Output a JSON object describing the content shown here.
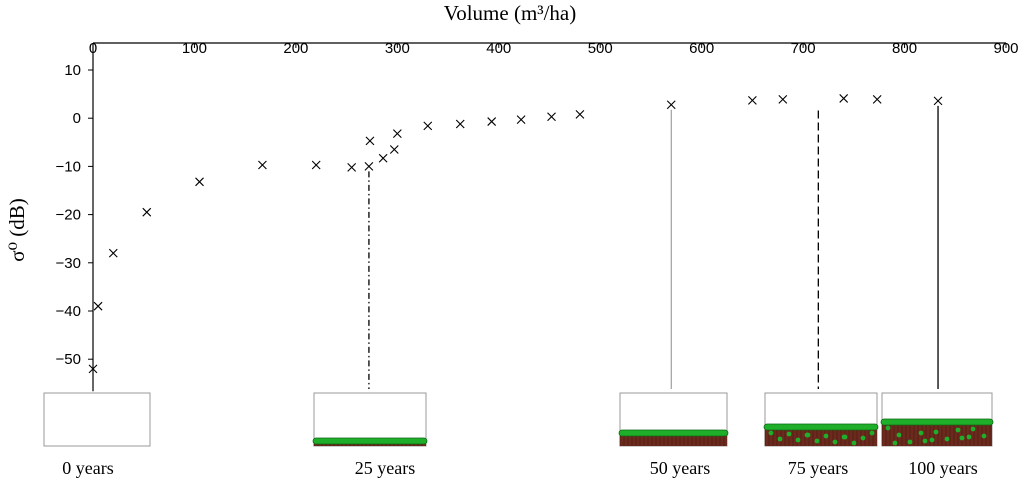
{
  "chart_data": {
    "type": "scatter",
    "title": "",
    "xlabel": "Volume (m³/ha)",
    "ylabel": "σ⁰ (dB)",
    "xlim": [
      0,
      900
    ],
    "ylim": [
      -55,
      10
    ],
    "x_ticks": [
      "0",
      "100",
      "200",
      "300",
      "400",
      "500",
      "600",
      "700",
      "800",
      "900"
    ],
    "y_ticks": [
      "10",
      "0",
      "−10",
      "−20",
      "−30",
      "−40",
      "−50"
    ],
    "x_axis_position": "top",
    "grid": false,
    "marker": "x",
    "points": [
      {
        "x": 0,
        "y": -52
      },
      {
        "x": 5,
        "y": -39
      },
      {
        "x": 20,
        "y": -28
      },
      {
        "x": 53,
        "y": -19.5
      },
      {
        "x": 105,
        "y": -13.2
      },
      {
        "x": 167,
        "y": -9.7
      },
      {
        "x": 220,
        "y": -9.7
      },
      {
        "x": 255,
        "y": -10.2
      },
      {
        "x": 272,
        "y": -10
      },
      {
        "x": 273,
        "y": -4.7
      },
      {
        "x": 286,
        "y": -8.3
      },
      {
        "x": 297,
        "y": -6.5
      },
      {
        "x": 300,
        "y": -3.2
      },
      {
        "x": 330,
        "y": -1.6
      },
      {
        "x": 362,
        "y": -1.2
      },
      {
        "x": 393,
        "y": -0.7
      },
      {
        "x": 422,
        "y": -0.3
      },
      {
        "x": 452,
        "y": 0.3
      },
      {
        "x": 480,
        "y": 0.8
      },
      {
        "x": 570,
        "y": 2.8
      },
      {
        "x": 650,
        "y": 3.7
      },
      {
        "x": 680,
        "y": 3.9
      },
      {
        "x": 740,
        "y": 4.1
      },
      {
        "x": 773,
        "y": 3.9
      },
      {
        "x": 833,
        "y": 3.6
      }
    ],
    "stand_markers": [
      {
        "label": "0 years",
        "volume": 0,
        "line_style": "none",
        "canopy_fill": 0
      },
      {
        "label": "25 years",
        "volume": 272,
        "line_style": "dash-dot",
        "canopy_fill": 0.1
      },
      {
        "label": "50 years",
        "volume": 570,
        "line_style": "solid-light",
        "canopy_fill": 0.25
      },
      {
        "label": "75 years",
        "volume": 715,
        "line_style": "dashed",
        "canopy_fill": 0.35
      },
      {
        "label": "100 years",
        "volume": 833,
        "line_style": "solid",
        "canopy_fill": 0.45
      }
    ],
    "colors": {
      "canopy": "#1fae2a",
      "trunk": "#6b2a1e",
      "axis": "#000000",
      "box_border": "#9a9a9a"
    }
  }
}
